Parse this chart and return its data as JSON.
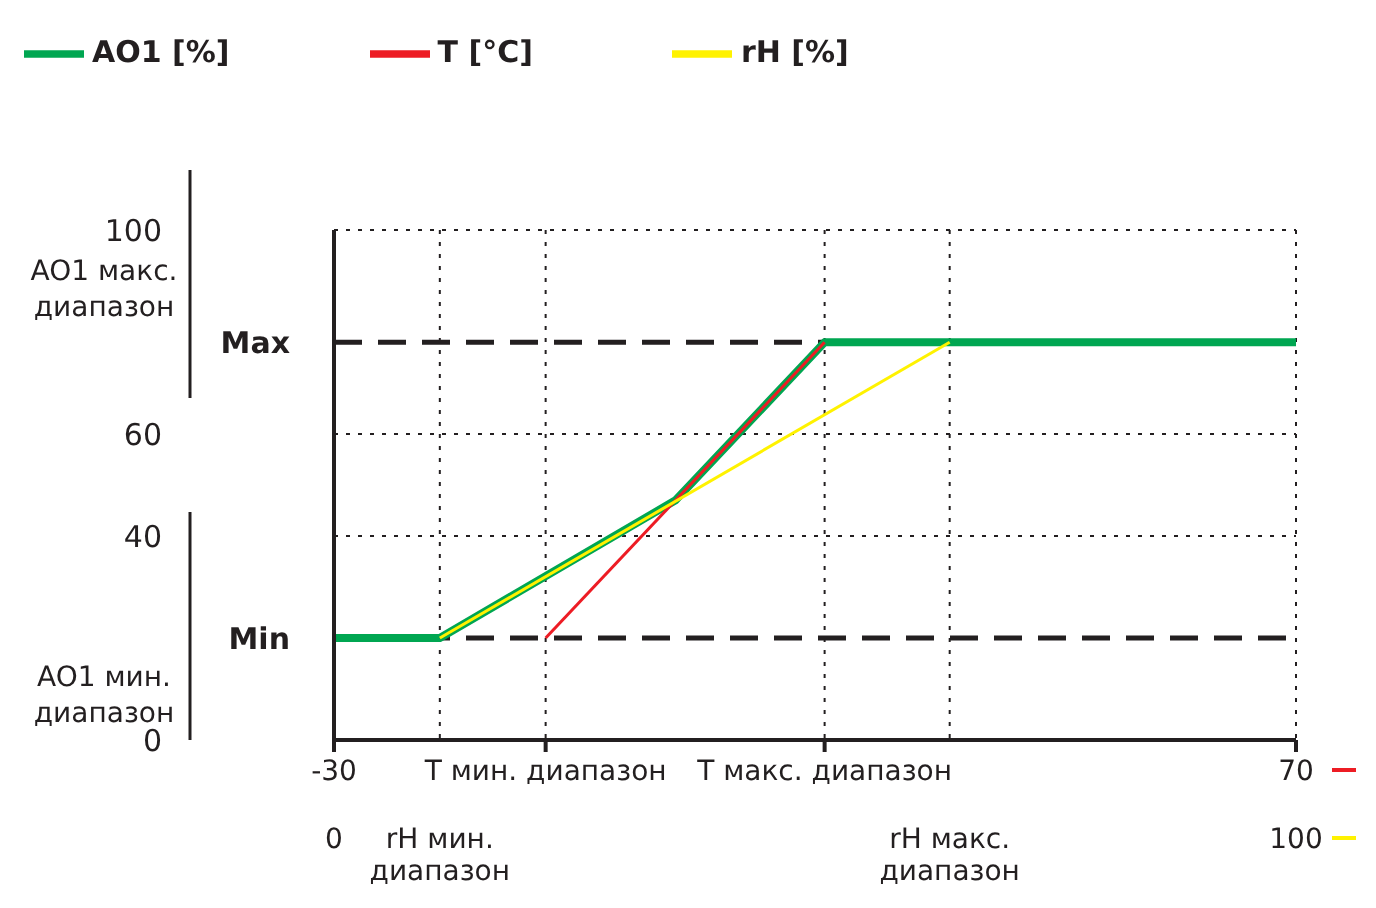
{
  "chart_data": {
    "type": "line",
    "legend": "top left",
    "grid": true,
    "marker": "none",
    "xlim": [
      -30,
      70
    ],
    "xticks": [
      -30,
      {
        "value": -8,
        "label": "T мин. диапазон"
      },
      {
        "value": 21,
        "label": "T макс. диапазон"
      },
      70
    ],
    "x2lim": [
      0,
      100
    ],
    "x2ticks": [
      0,
      {
        "value": 11,
        "label": "rH мин. диапазон"
      },
      {
        "value": 64,
        "label": "rH макс. диапазон"
      },
      100
    ],
    "ylim": [
      0,
      100
    ],
    "yticks": [
      0,
      40,
      60,
      100
    ],
    "ref_lines": [
      {
        "axis": "y",
        "value": 78,
        "label": "Max",
        "line_style": "dashed",
        "color": "#231f20"
      },
      {
        "axis": "y",
        "value": 20,
        "label": "Min",
        "line_style": "dashed",
        "color": "#231f20"
      }
    ],
    "annotations": [
      "AO1 макс. диапазон",
      "AO1 мин. диапазон"
    ],
    "series": [
      {
        "name": "AO1 [%]",
        "color": "#00a651",
        "x": [
          -30,
          -19,
          5.5,
          21,
          70
        ],
        "values": [
          20,
          20,
          47,
          78,
          78
        ]
      },
      {
        "name": "T [°C]",
        "color": "#ed1c24",
        "x": [
          -8,
          21
        ],
        "values": [
          20,
          78
        ]
      },
      {
        "name": "rH [%]",
        "color": "#fff200",
        "axis": "x2",
        "x": [
          11,
          64
        ],
        "values": [
          20,
          78
        ]
      }
    ]
  }
}
